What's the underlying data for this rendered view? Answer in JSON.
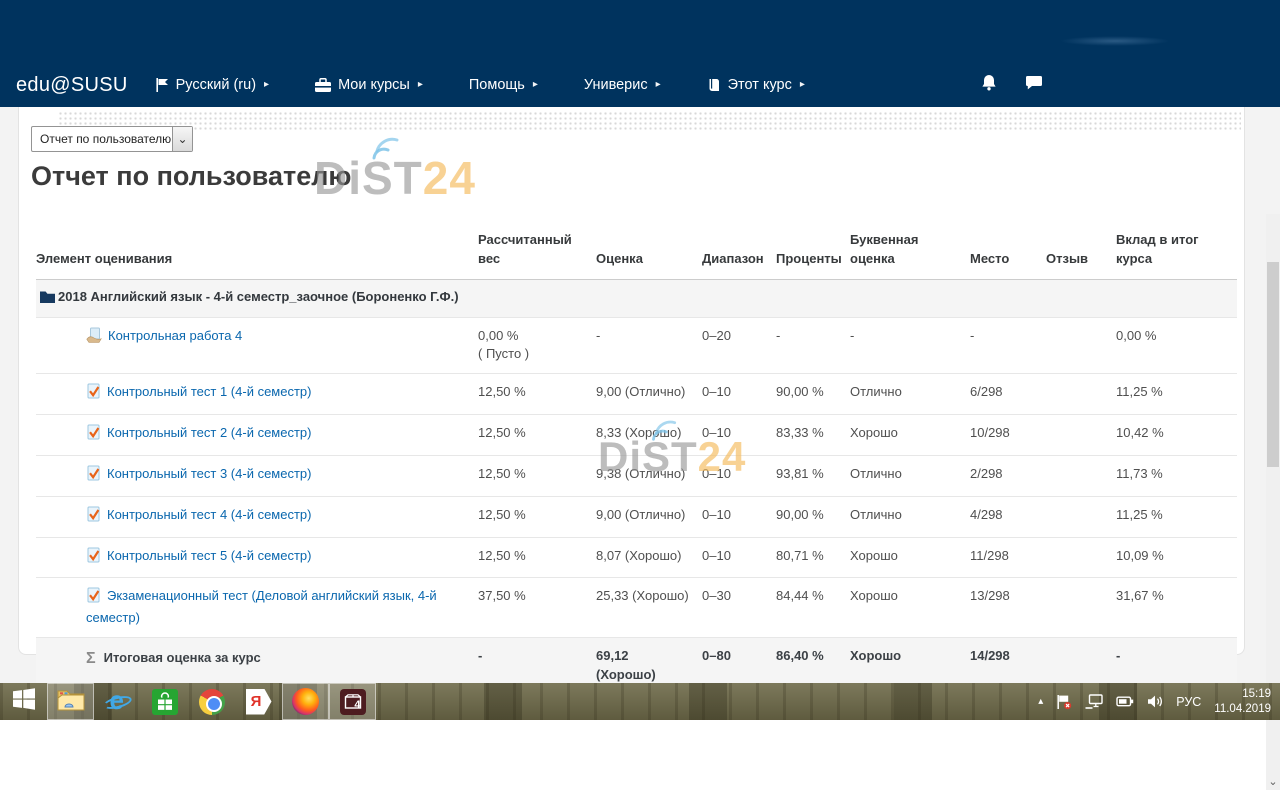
{
  "colors": {
    "navbar_bg": "#00335e",
    "link_blue": "#0a67ae",
    "watermark_gray": "#949494",
    "watermark_orange": "#f4bb5c",
    "wifi_blue": "#7ec3e8"
  },
  "navbar": {
    "brand": "edu@SUSU",
    "items": [
      {
        "label": "Русский (ru)",
        "icon": "flag-icon"
      },
      {
        "label": "Мои курсы",
        "icon": "briefcase-icon"
      },
      {
        "label": "Помощь",
        "icon": ""
      },
      {
        "label": "Универис",
        "icon": ""
      },
      {
        "label": "Этот курс",
        "icon": "book-icon"
      }
    ]
  },
  "content": {
    "report_select_value": "Отчет по пользователю",
    "title": "Отчет по пользователю",
    "watermark": {
      "main": "DiST",
      "accent": "24"
    }
  },
  "table": {
    "headers": [
      "Элемент оценивания",
      "Рассчитанный вес",
      "Оценка",
      "Диапазон",
      "Проценты",
      "Буквенная оценка",
      "Место",
      "Отзыв",
      "Вклад в итог курса"
    ],
    "category": "2018 Английский язык - 4-й семестр_заочное (Бороненко Г.Ф.)",
    "rows": [
      {
        "icon": "assignment-icon",
        "name": "Контрольная работа 4",
        "weight": "0,00 %",
        "weight_note": "( Пусто )",
        "grade": "-",
        "range": "0–20",
        "percent": "-",
        "letter": "-",
        "rank": "-",
        "feedback": "",
        "contribution": "0,00 %"
      },
      {
        "icon": "quiz-icon",
        "name": "Контрольный тест 1 (4-й семестр)",
        "weight": "12,50 %",
        "grade": "9,00 (Отлично)",
        "range": "0–10",
        "percent": "90,00 %",
        "letter": "Отлично",
        "rank": "6/298",
        "feedback": "",
        "contribution": "11,25 %"
      },
      {
        "icon": "quiz-icon",
        "name": "Контрольный тест 2 (4-й семестр)",
        "weight": "12,50 %",
        "grade": "8,33 (Хорошо)",
        "range": "0–10",
        "percent": "83,33 %",
        "letter": "Хорошо",
        "rank": "10/298",
        "feedback": "",
        "contribution": "10,42 %"
      },
      {
        "icon": "quiz-icon",
        "name": "Контрольный тест 3 (4-й семестр)",
        "weight": "12,50 %",
        "grade": "9,38 (Отлично)",
        "range": "0–10",
        "percent": "93,81 %",
        "letter": "Отлично",
        "rank": "2/298",
        "feedback": "",
        "contribution": "11,73 %"
      },
      {
        "icon": "quiz-icon",
        "name": "Контрольный тест 4 (4-й семестр)",
        "weight": "12,50 %",
        "grade": "9,00 (Отлично)",
        "range": "0–10",
        "percent": "90,00 %",
        "letter": "Отлично",
        "rank": "4/298",
        "feedback": "",
        "contribution": "11,25 %"
      },
      {
        "icon": "quiz-icon",
        "name": "Контрольный тест 5 (4-й семестр)",
        "weight": "12,50 %",
        "grade": "8,07 (Хорошо)",
        "range": "0–10",
        "percent": "80,71 %",
        "letter": "Хорошо",
        "rank": "11/298",
        "feedback": "",
        "contribution": "10,09 %"
      },
      {
        "icon": "quiz-icon",
        "name": "Экзаменационный тест (Деловой английский язык, 4-й семестр)",
        "weight": "37,50 %",
        "grade": "25,33 (Хорошо)",
        "range": "0–30",
        "percent": "84,44 %",
        "letter": "Хорошо",
        "rank": "13/298",
        "feedback": "",
        "contribution": "31,67 %"
      }
    ],
    "total": {
      "icon_glyph": "Σ",
      "name": "Итоговая оценка за курс",
      "weight": "-",
      "grade": "69,12",
      "grade_note": "(Хорошо)",
      "range": "0–80",
      "percent": "86,40 %",
      "letter": "Хорошо",
      "rank": "14/298",
      "feedback": "",
      "contribution": "-"
    }
  },
  "taskbar": {
    "apps": [
      {
        "name": "start",
        "glyph": ""
      },
      {
        "name": "file-explorer",
        "glyph": "",
        "active": true
      },
      {
        "name": "internet-explorer",
        "glyph": "e"
      },
      {
        "name": "windows-store",
        "glyph": ""
      },
      {
        "name": "chrome",
        "glyph": ""
      },
      {
        "name": "yandex-browser",
        "glyph": "Я"
      },
      {
        "name": "firefox",
        "glyph": "",
        "active": true
      },
      {
        "name": "4k-video-downloader",
        "glyph": "4",
        "active": true
      }
    ],
    "tray": {
      "language": "РУС",
      "time": "15:19",
      "date": "11.04.2019"
    }
  },
  "icons": {
    "caret": "▸",
    "select_chevron": "⌄",
    "scroll_down": "⌄",
    "tray_expand": "▴"
  }
}
